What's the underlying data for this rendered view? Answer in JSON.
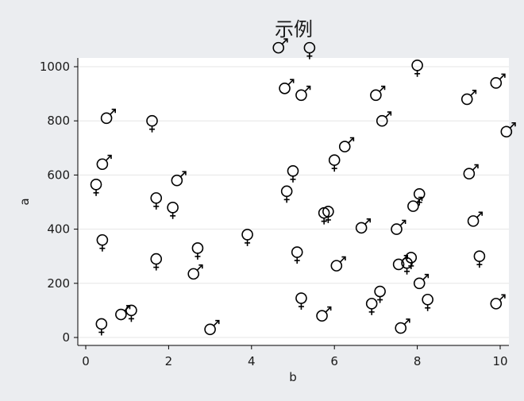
{
  "chart_data": {
    "type": "scatter",
    "title": "示例",
    "xlabel": "b",
    "ylabel": "a",
    "xlim": [
      0,
      10
    ],
    "ylim": [
      0,
      1000
    ],
    "xticks": [
      0,
      2,
      4,
      6,
      8,
      10
    ],
    "yticks": [
      0,
      200,
      400,
      600,
      800,
      1000
    ],
    "grid": true,
    "legend": "none",
    "marker_legend": {
      "female": "♀ (circle with cross below)",
      "male": "♂ (circle with arrow to upper-right)"
    },
    "colors": {
      "background": "#ebedf0",
      "plot_background": "#ffffff",
      "grid": "#e6e6e6",
      "marker": "#000000"
    },
    "series": [
      {
        "name": "female",
        "symbol": "♀",
        "points": [
          {
            "x": 0.25,
            "y": 565
          },
          {
            "x": 0.4,
            "y": 360
          },
          {
            "x": 0.38,
            "y": 50
          },
          {
            "x": 1.1,
            "y": 100
          },
          {
            "x": 1.6,
            "y": 800
          },
          {
            "x": 1.7,
            "y": 515
          },
          {
            "x": 1.7,
            "y": 290
          },
          {
            "x": 2.1,
            "y": 480
          },
          {
            "x": 2.7,
            "y": 330
          },
          {
            "x": 3.9,
            "y": 380
          },
          {
            "x": 4.85,
            "y": 540
          },
          {
            "x": 5.0,
            "y": 615
          },
          {
            "x": 5.1,
            "y": 315
          },
          {
            "x": 5.2,
            "y": 145
          },
          {
            "x": 5.4,
            "y": 1070
          },
          {
            "x": 5.75,
            "y": 460
          },
          {
            "x": 5.85,
            "y": 465
          },
          {
            "x": 6.0,
            "y": 655
          },
          {
            "x": 6.9,
            "y": 125
          },
          {
            "x": 7.1,
            "y": 170
          },
          {
            "x": 7.75,
            "y": 275
          },
          {
            "x": 7.85,
            "y": 295
          },
          {
            "x": 8.0,
            "y": 1005
          },
          {
            "x": 8.05,
            "y": 530
          },
          {
            "x": 8.25,
            "y": 140
          },
          {
            "x": 9.5,
            "y": 300
          }
        ]
      },
      {
        "name": "male",
        "symbol": "♂",
        "points": [
          {
            "x": 0.4,
            "y": 640
          },
          {
            "x": 0.5,
            "y": 810
          },
          {
            "x": 0.85,
            "y": 85
          },
          {
            "x": 2.2,
            "y": 580
          },
          {
            "x": 2.6,
            "y": 235
          },
          {
            "x": 3.0,
            "y": 30
          },
          {
            "x": 4.65,
            "y": 1070
          },
          {
            "x": 4.8,
            "y": 920
          },
          {
            "x": 5.2,
            "y": 895
          },
          {
            "x": 5.7,
            "y": 80
          },
          {
            "x": 6.05,
            "y": 265
          },
          {
            "x": 6.25,
            "y": 705
          },
          {
            "x": 6.65,
            "y": 405
          },
          {
            "x": 7.0,
            "y": 895
          },
          {
            "x": 7.15,
            "y": 800
          },
          {
            "x": 7.5,
            "y": 400
          },
          {
            "x": 7.55,
            "y": 270
          },
          {
            "x": 7.6,
            "y": 35
          },
          {
            "x": 7.9,
            "y": 485
          },
          {
            "x": 8.05,
            "y": 200
          },
          {
            "x": 9.2,
            "y": 880
          },
          {
            "x": 9.25,
            "y": 605
          },
          {
            "x": 9.35,
            "y": 430
          },
          {
            "x": 9.9,
            "y": 940
          },
          {
            "x": 9.9,
            "y": 125
          },
          {
            "x": 10.15,
            "y": 760
          }
        ]
      }
    ]
  }
}
